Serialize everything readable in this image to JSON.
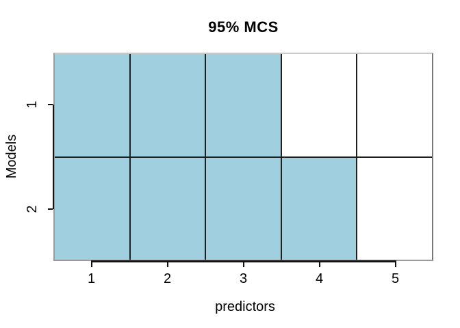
{
  "colors": {
    "filled_cell": "#a0d0e0",
    "empty_cell": "#ffffff",
    "grid_line": "#1f1f1f",
    "axis_line": "#111111",
    "box_border_top": "#c9c9c9",
    "box_border_side": "#787878",
    "text": "#000000",
    "background": "#ffffff"
  },
  "chart_data": {
    "type": "heatmap",
    "title": "95% MCS",
    "xlabel": "predictors",
    "ylabel": "Models",
    "x_ticks": [
      "1",
      "2",
      "3",
      "4",
      "5"
    ],
    "y_ticks": [
      "1",
      "2"
    ],
    "x_range": [
      0.5,
      5.5
    ],
    "grid": true,
    "rows": [
      {
        "model": "1",
        "included": [
          1,
          1,
          1,
          0,
          0
        ]
      },
      {
        "model": "2",
        "included": [
          1,
          1,
          1,
          1,
          0
        ]
      }
    ]
  }
}
